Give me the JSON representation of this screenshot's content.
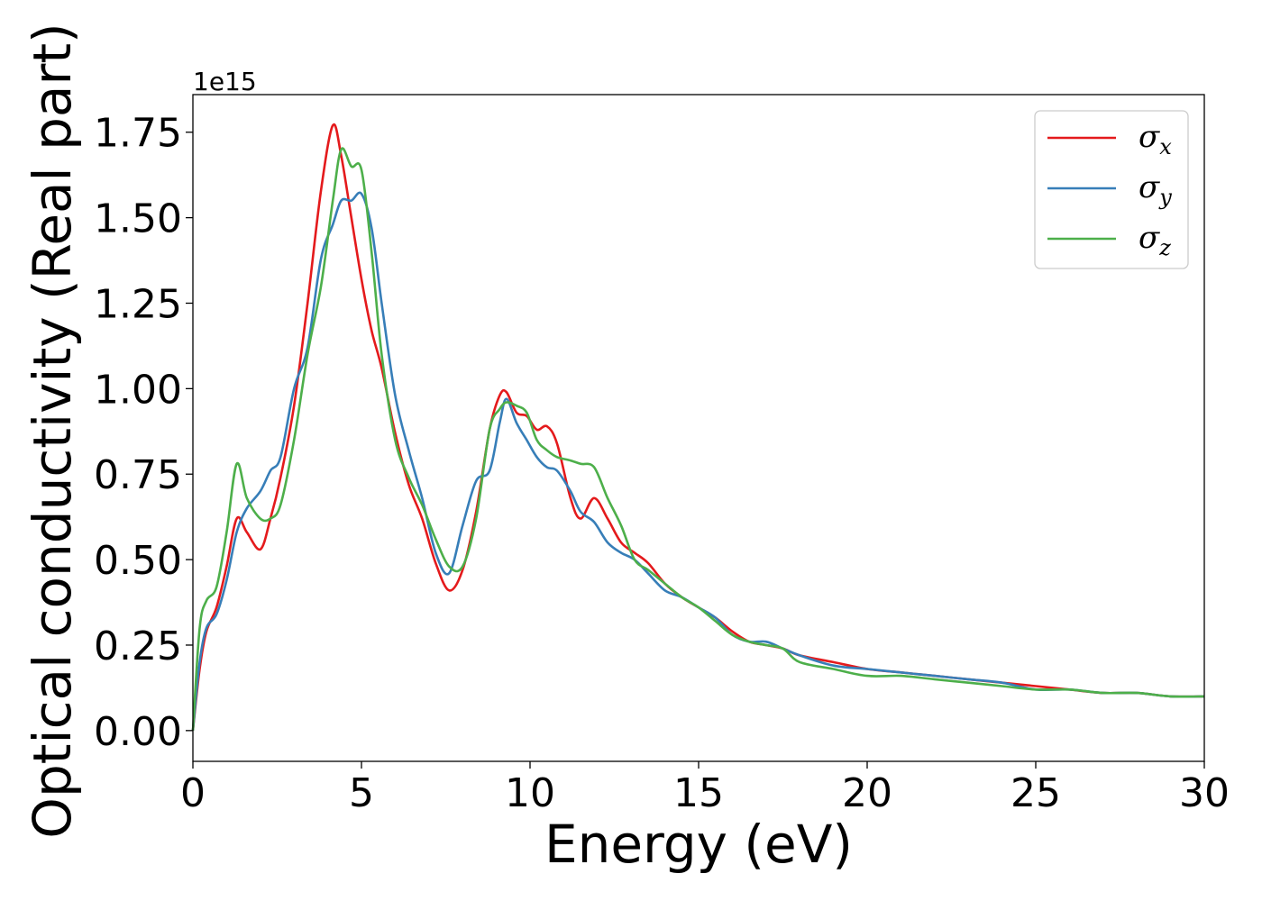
{
  "chart_data": {
    "type": "line",
    "title": "",
    "xlabel": "Energy (eV)",
    "ylabel": "Optical conductivity (Real part)",
    "y_offset_label": "1e15",
    "xlim": [
      0,
      30
    ],
    "ylim": [
      -0.09,
      1.86
    ],
    "xticks": [
      0,
      5,
      10,
      15,
      20,
      25,
      30
    ],
    "xtick_labels": [
      "0",
      "5",
      "10",
      "15",
      "20",
      "25",
      "30"
    ],
    "yticks": [
      0.0,
      0.25,
      0.5,
      0.75,
      1.0,
      1.25,
      1.5,
      1.75
    ],
    "ytick_labels": [
      "0.00",
      "0.25",
      "0.50",
      "0.75",
      "1.00",
      "1.25",
      "1.50",
      "1.75"
    ],
    "grid": false,
    "legend_position": "top-right",
    "series": [
      {
        "name": "σ",
        "sub": "x",
        "color": "#e41a1c",
        "x": [
          0,
          0.2,
          0.4,
          0.7,
          1.0,
          1.3,
          1.6,
          2.0,
          2.3,
          2.6,
          3.0,
          3.4,
          3.8,
          4.15,
          4.4,
          4.7,
          5.0,
          5.3,
          5.6,
          6.0,
          6.4,
          6.8,
          7.2,
          7.6,
          8.0,
          8.4,
          8.8,
          9.1,
          9.3,
          9.6,
          9.9,
          10.2,
          10.5,
          10.8,
          11.2,
          11.5,
          11.9,
          12.3,
          12.7,
          13.1,
          13.5,
          14.0,
          14.5,
          15.0,
          15.5,
          16.0,
          16.5,
          17.0,
          17.5,
          18.0,
          19.0,
          20.0,
          21.0,
          22.0,
          23.0,
          24.0,
          25.0,
          26.0,
          27.0,
          28.0,
          29.0,
          30.0
        ],
        "y": [
          0.0,
          0.18,
          0.29,
          0.36,
          0.48,
          0.62,
          0.58,
          0.53,
          0.62,
          0.74,
          0.95,
          1.25,
          1.58,
          1.77,
          1.68,
          1.5,
          1.32,
          1.17,
          1.06,
          0.87,
          0.72,
          0.62,
          0.49,
          0.41,
          0.47,
          0.64,
          0.88,
          0.98,
          0.99,
          0.93,
          0.92,
          0.88,
          0.89,
          0.84,
          0.68,
          0.62,
          0.68,
          0.62,
          0.55,
          0.52,
          0.49,
          0.43,
          0.39,
          0.36,
          0.33,
          0.29,
          0.26,
          0.25,
          0.24,
          0.22,
          0.2,
          0.18,
          0.17,
          0.16,
          0.15,
          0.14,
          0.13,
          0.12,
          0.11,
          0.11,
          0.1,
          0.1
        ]
      },
      {
        "name": "σ",
        "sub": "y",
        "color": "#377eb8",
        "x": [
          0,
          0.2,
          0.4,
          0.7,
          1.0,
          1.3,
          1.6,
          2.0,
          2.3,
          2.6,
          3.0,
          3.4,
          3.8,
          4.15,
          4.4,
          4.7,
          5.0,
          5.3,
          5.6,
          6.0,
          6.4,
          6.8,
          7.2,
          7.6,
          8.0,
          8.4,
          8.8,
          9.1,
          9.3,
          9.6,
          9.9,
          10.2,
          10.5,
          10.8,
          11.2,
          11.5,
          11.9,
          12.3,
          12.7,
          13.1,
          13.5,
          14.0,
          14.5,
          15.0,
          15.5,
          16.0,
          16.5,
          17.0,
          17.5,
          18.0,
          19.0,
          20.0,
          21.0,
          22.0,
          23.0,
          24.0,
          25.0,
          26.0,
          27.0,
          28.0,
          29.0,
          30.0
        ],
        "y": [
          0.0,
          0.2,
          0.3,
          0.34,
          0.44,
          0.58,
          0.65,
          0.7,
          0.76,
          0.8,
          1.0,
          1.12,
          1.38,
          1.48,
          1.55,
          1.55,
          1.57,
          1.47,
          1.25,
          0.98,
          0.82,
          0.68,
          0.52,
          0.46,
          0.6,
          0.73,
          0.76,
          0.9,
          0.97,
          0.9,
          0.85,
          0.8,
          0.77,
          0.76,
          0.7,
          0.64,
          0.61,
          0.55,
          0.52,
          0.5,
          0.46,
          0.41,
          0.39,
          0.36,
          0.33,
          0.28,
          0.26,
          0.26,
          0.24,
          0.22,
          0.19,
          0.18,
          0.17,
          0.16,
          0.15,
          0.14,
          0.12,
          0.12,
          0.11,
          0.11,
          0.1,
          0.1
        ]
      },
      {
        "name": "σ",
        "sub": "z",
        "color": "#4daf4a",
        "x": [
          0,
          0.2,
          0.4,
          0.7,
          1.0,
          1.3,
          1.6,
          2.0,
          2.3,
          2.6,
          3.0,
          3.4,
          3.8,
          4.15,
          4.4,
          4.7,
          5.0,
          5.3,
          5.6,
          6.0,
          6.4,
          6.8,
          7.2,
          7.6,
          8.0,
          8.4,
          8.8,
          9.1,
          9.3,
          9.6,
          9.9,
          10.2,
          10.5,
          10.8,
          11.2,
          11.5,
          11.9,
          12.3,
          12.7,
          13.1,
          13.5,
          14.0,
          14.5,
          15.0,
          15.5,
          16.0,
          16.5,
          17.0,
          17.5,
          18.0,
          19.0,
          20.0,
          21.0,
          22.0,
          23.0,
          24.0,
          25.0,
          26.0,
          27.0,
          28.0,
          29.0,
          30.0
        ],
        "y": [
          0.0,
          0.3,
          0.38,
          0.42,
          0.58,
          0.78,
          0.68,
          0.62,
          0.62,
          0.66,
          0.85,
          1.1,
          1.3,
          1.55,
          1.7,
          1.65,
          1.64,
          1.4,
          1.1,
          0.85,
          0.74,
          0.66,
          0.56,
          0.48,
          0.48,
          0.62,
          0.88,
          0.94,
          0.96,
          0.95,
          0.93,
          0.85,
          0.82,
          0.8,
          0.79,
          0.78,
          0.77,
          0.68,
          0.6,
          0.5,
          0.47,
          0.43,
          0.39,
          0.36,
          0.32,
          0.28,
          0.26,
          0.25,
          0.24,
          0.2,
          0.18,
          0.16,
          0.16,
          0.15,
          0.14,
          0.13,
          0.12,
          0.12,
          0.11,
          0.11,
          0.1,
          0.1
        ]
      }
    ]
  }
}
